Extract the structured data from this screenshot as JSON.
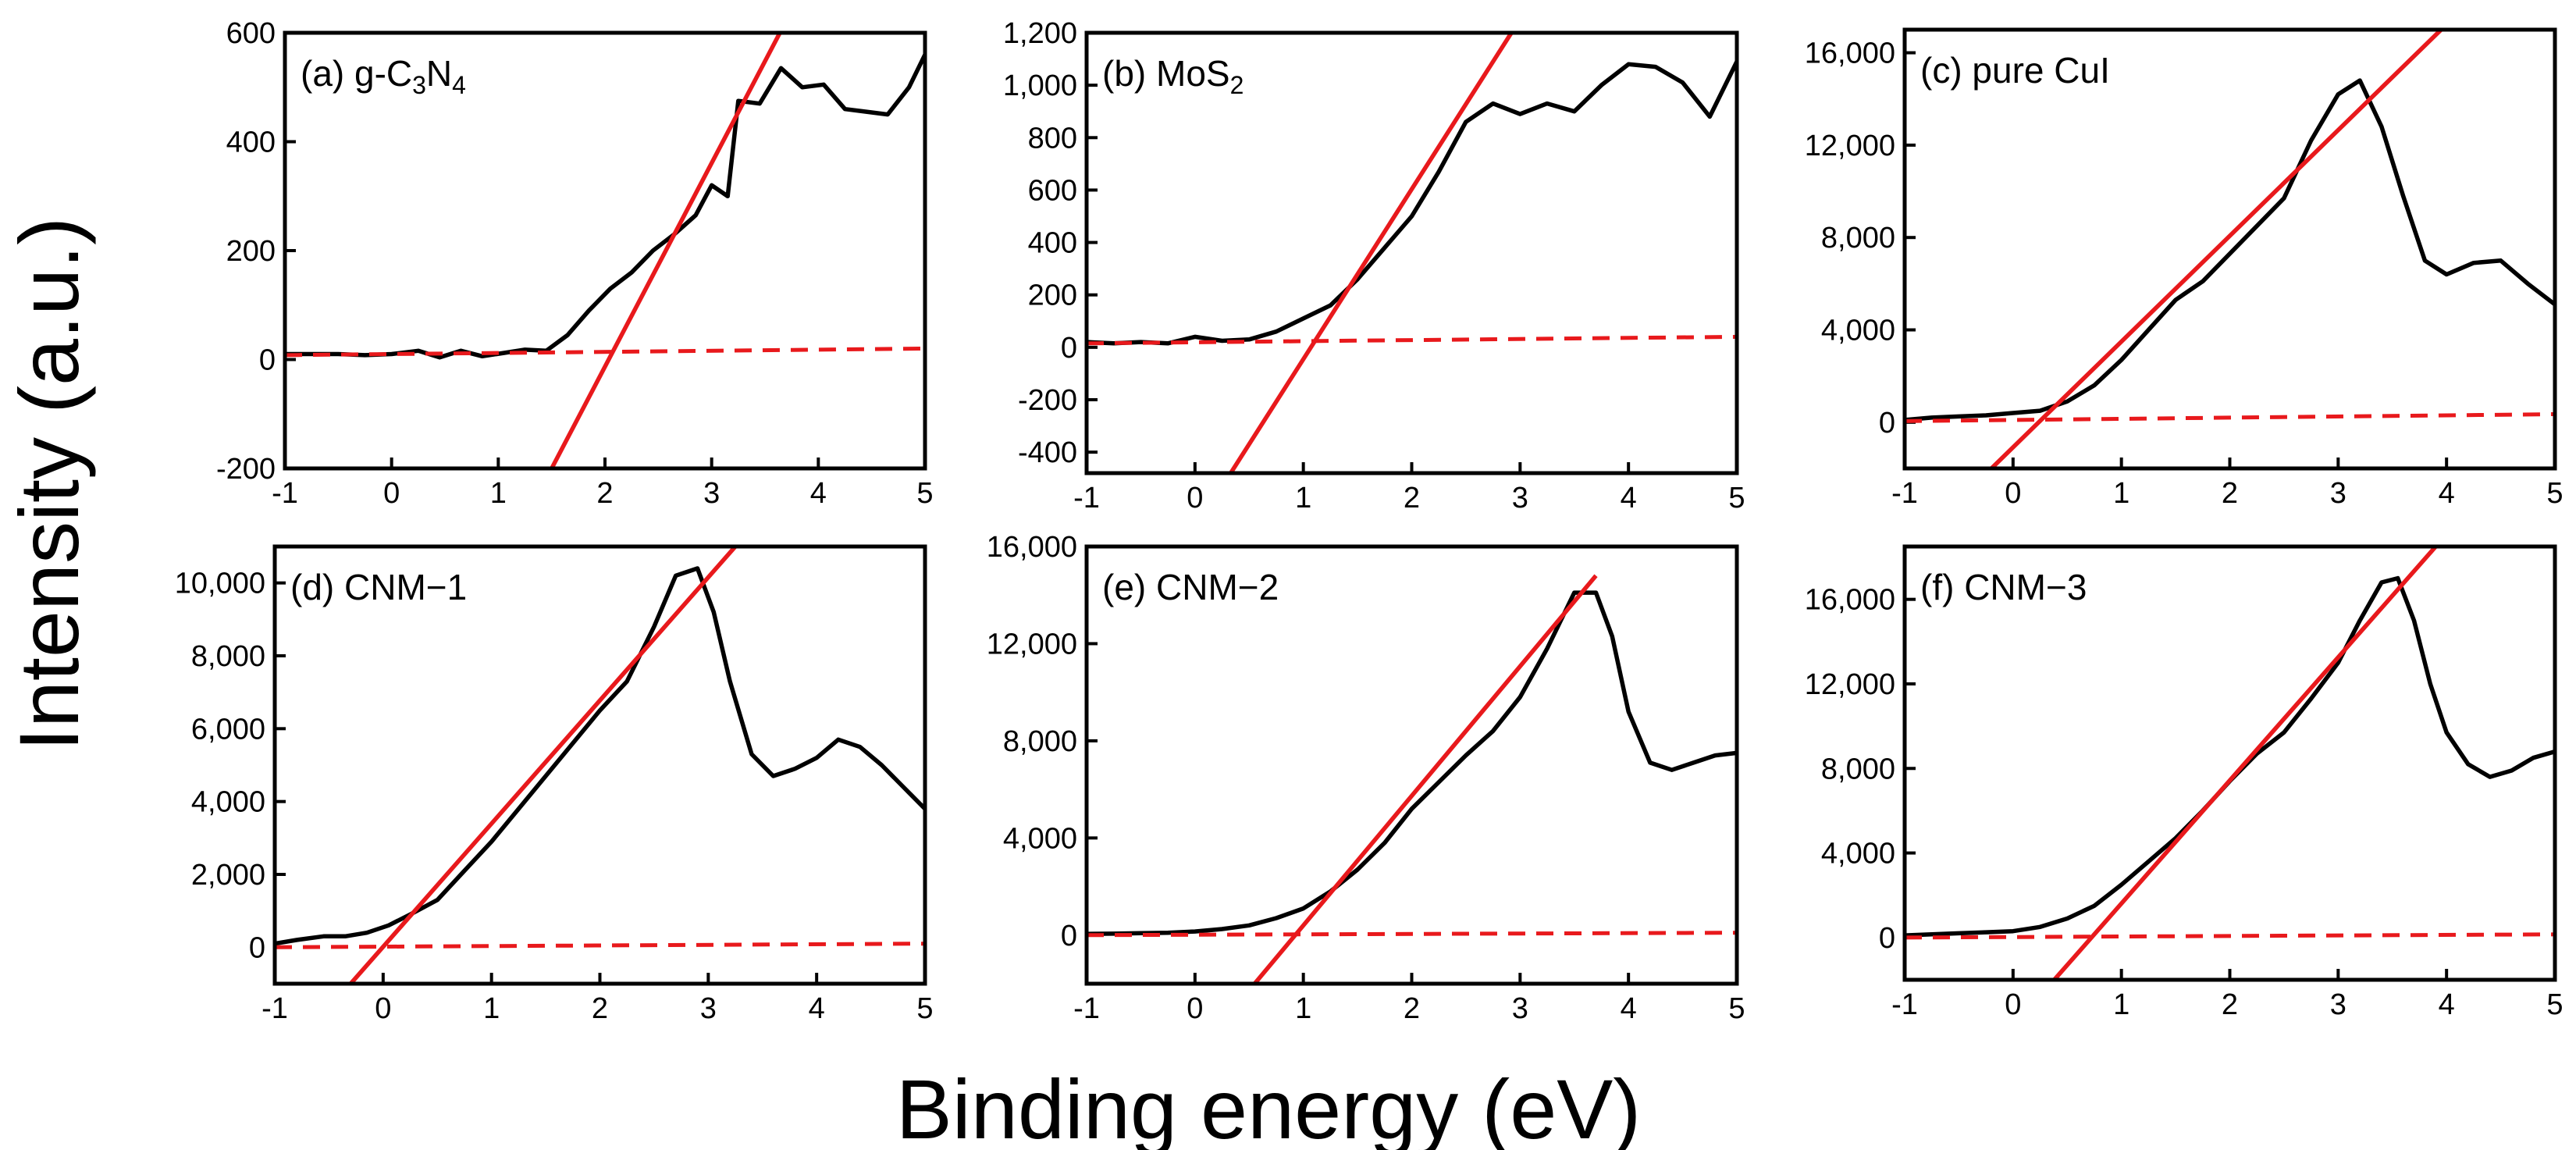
{
  "figure": {
    "ylabel": "Intensity (a.u.)",
    "xlabel": "Binding energy (eV)"
  },
  "chart_data": [
    {
      "type": "line",
      "panel_label": "(a) g-C",
      "label_parts": [
        {
          "t": "(a) g-C"
        },
        {
          "t": "3",
          "sub": true
        },
        {
          "t": "N"
        },
        {
          "t": "4",
          "sub": true
        }
      ],
      "xlabel": "Binding energy (eV)",
      "ylabel": "Intensity (a.u.)",
      "xlim": [
        -1,
        5
      ],
      "ylim": [
        -200,
        600
      ],
      "xticks": [
        -1,
        0,
        1,
        2,
        3,
        4,
        5
      ],
      "xtick_labels": [
        "-1",
        "0",
        "1",
        "2",
        "3",
        "4",
        "5"
      ],
      "yticks": [
        -200,
        0,
        200,
        400,
        600
      ],
      "ytick_labels": [
        "-200",
        "0",
        "200",
        "400",
        "600"
      ],
      "series": [
        {
          "name": "data",
          "x": [
            -1,
            -0.75,
            -0.5,
            -0.25,
            0,
            0.25,
            0.45,
            0.65,
            0.85,
            1.05,
            1.25,
            1.45,
            1.65,
            1.85,
            2.05,
            2.25,
            2.45,
            2.65,
            2.85,
            3.0,
            3.15,
            3.25,
            3.45,
            3.65,
            3.85,
            4.05,
            4.25,
            4.45,
            4.65,
            4.85,
            5.0
          ],
          "y": [
            10,
            10,
            10,
            8,
            10,
            16,
            4,
            16,
            6,
            12,
            18,
            16,
            45,
            90,
            130,
            160,
            200,
            230,
            265,
            320,
            300,
            475,
            470,
            535,
            500,
            505,
            460,
            455,
            450,
            500,
            560
          ]
        },
        {
          "name": "linear fit",
          "x": [
            1.5,
            3.64
          ],
          "y": [
            -200,
            600
          ]
        },
        {
          "name": "baseline",
          "x": [
            -1,
            5
          ],
          "y": [
            8,
            20
          ]
        }
      ]
    },
    {
      "type": "line",
      "panel_label": "(b) MoS",
      "label_parts": [
        {
          "t": "(b) MoS"
        },
        {
          "t": "2",
          "sub": true
        }
      ],
      "xlabel": "Binding energy (eV)",
      "ylabel": "Intensity (a.u.)",
      "xlim": [
        -1,
        5
      ],
      "ylim": [
        -480,
        1200
      ],
      "xticks": [
        -1,
        0,
        1,
        2,
        3,
        4,
        5
      ],
      "xtick_labels": [
        "-1",
        "0",
        "1",
        "2",
        "3",
        "4",
        "5"
      ],
      "yticks": [
        -400,
        -200,
        0,
        200,
        400,
        600,
        800,
        1000,
        1200
      ],
      "ytick_labels": [
        "-400",
        "-200",
        "0",
        "200",
        "400",
        "600",
        "800",
        "1,000",
        "1,200"
      ],
      "series": [
        {
          "name": "data",
          "x": [
            -1,
            -0.75,
            -0.5,
            -0.25,
            0,
            0.25,
            0.5,
            0.75,
            1.0,
            1.25,
            1.5,
            1.75,
            2.0,
            2.25,
            2.5,
            2.75,
            3.0,
            3.25,
            3.5,
            3.75,
            4.0,
            4.25,
            4.5,
            4.75,
            5.0
          ],
          "y": [
            20,
            15,
            20,
            15,
            40,
            25,
            30,
            60,
            110,
            160,
            260,
            380,
            500,
            670,
            860,
            930,
            890,
            930,
            900,
            1000,
            1080,
            1070,
            1010,
            880,
            1090
          ]
        },
        {
          "name": "linear fit",
          "x": [
            0.33,
            2.92
          ],
          "y": [
            -480,
            1200
          ]
        },
        {
          "name": "baseline",
          "x": [
            -1,
            5
          ],
          "y": [
            15,
            40
          ]
        }
      ]
    },
    {
      "type": "line",
      "panel_label": "(c) pure CuI",
      "label_parts": [
        {
          "t": "(c) pure CuI"
        }
      ],
      "xlabel": "Binding energy (eV)",
      "ylabel": "Intensity (a.u.)",
      "xlim": [
        -1,
        5
      ],
      "ylim": [
        -2000,
        17000
      ],
      "xticks": [
        -1,
        0,
        1,
        2,
        3,
        4,
        5
      ],
      "xtick_labels": [
        "-1",
        "0",
        "1",
        "2",
        "3",
        "4",
        "5"
      ],
      "yticks": [
        0,
        4000,
        8000,
        12000,
        16000
      ],
      "ytick_labels": [
        "0",
        "4,000",
        "8,000",
        "12,000",
        "16,000"
      ],
      "series": [
        {
          "name": "data",
          "x": [
            -1,
            -0.75,
            -0.5,
            -0.25,
            0,
            0.25,
            0.5,
            0.75,
            1.0,
            1.25,
            1.5,
            1.75,
            2.0,
            2.25,
            2.5,
            2.75,
            3.0,
            3.2,
            3.4,
            3.6,
            3.8,
            4.0,
            4.25,
            4.5,
            4.75,
            5.0
          ],
          "y": [
            100,
            200,
            250,
            300,
            400,
            500,
            900,
            1600,
            2700,
            4000,
            5300,
            6100,
            7300,
            8500,
            9700,
            12200,
            14200,
            14800,
            12800,
            9800,
            7000,
            6400,
            6900,
            7000,
            6000,
            5100
          ]
        },
        {
          "name": "linear fit",
          "x": [
            -0.2,
            3.95
          ],
          "y": [
            -2000,
            17000
          ]
        },
        {
          "name": "baseline",
          "x": [
            -1,
            5
          ],
          "y": [
            50,
            350
          ]
        }
      ]
    },
    {
      "type": "line",
      "panel_label": "(d) CNM−1",
      "label_parts": [
        {
          "t": "(d) CNM−1"
        }
      ],
      "xlabel": "Binding energy (eV)",
      "ylabel": "Intensity (a.u.)",
      "xlim": [
        -1,
        5
      ],
      "ylim": [
        -1000,
        11000
      ],
      "xticks": [
        -1,
        0,
        1,
        2,
        3,
        4,
        5
      ],
      "xtick_labels": [
        "-1",
        "0",
        "1",
        "2",
        "3",
        "4",
        "5"
      ],
      "yticks": [
        0,
        2000,
        4000,
        6000,
        8000,
        10000
      ],
      "ytick_labels": [
        "0",
        "2,000",
        "4,000",
        "6,000",
        "8,000",
        "10,000"
      ],
      "series": [
        {
          "name": "data",
          "x": [
            -1,
            -0.8,
            -0.55,
            -0.35,
            -0.15,
            0.05,
            0.25,
            0.5,
            0.75,
            1.0,
            1.25,
            1.5,
            1.75,
            2.0,
            2.25,
            2.5,
            2.7,
            2.9,
            3.05,
            3.2,
            3.4,
            3.6,
            3.8,
            4.0,
            4.2,
            4.4,
            4.6,
            4.8,
            5.0
          ],
          "y": [
            100,
            200,
            300,
            300,
            400,
            600,
            900,
            1300,
            2100,
            2900,
            3800,
            4700,
            5600,
            6500,
            7300,
            8800,
            10200,
            10400,
            9200,
            7300,
            5300,
            4700,
            4900,
            5200,
            5700,
            5500,
            5000,
            4400,
            3800
          ]
        },
        {
          "name": "linear fit",
          "x": [
            -0.3,
            3.25
          ],
          "y": [
            -1000,
            11000
          ]
        },
        {
          "name": "baseline",
          "x": [
            -1,
            5
          ],
          "y": [
            0,
            100
          ]
        }
      ]
    },
    {
      "type": "line",
      "panel_label": "(e) CNM−2",
      "label_parts": [
        {
          "t": "(e) CNM−2"
        }
      ],
      "xlabel": "Binding energy (eV)",
      "ylabel": "Intensity (a.u.)",
      "xlim": [
        -1,
        5
      ],
      "ylim": [
        -2000,
        16000
      ],
      "xticks": [
        -1,
        0,
        1,
        2,
        3,
        4,
        5
      ],
      "xtick_labels": [
        "-1",
        "0",
        "1",
        "2",
        "3",
        "4",
        "5"
      ],
      "yticks": [
        0,
        4000,
        8000,
        12000,
        16000
      ],
      "ytick_labels": [
        "0",
        "4,000",
        "8,000",
        "12,000",
        "16,000"
      ],
      "series": [
        {
          "name": "data",
          "x": [
            -1,
            -0.75,
            -0.5,
            -0.25,
            0,
            0.25,
            0.5,
            0.75,
            1.0,
            1.25,
            1.5,
            1.75,
            2.0,
            2.25,
            2.5,
            2.75,
            3.0,
            3.25,
            3.5,
            3.7,
            3.85,
            4.0,
            4.2,
            4.4,
            4.6,
            4.8,
            5.0
          ],
          "y": [
            50,
            60,
            80,
            100,
            150,
            250,
            400,
            700,
            1100,
            1800,
            2700,
            3800,
            5200,
            6300,
            7400,
            8400,
            9800,
            11800,
            14100,
            14100,
            12300,
            9200,
            7100,
            6800,
            7100,
            7400,
            7500
          ]
        },
        {
          "name": "linear fit",
          "x": [
            0.55,
            3.7
          ],
          "y": [
            -2000,
            14800
          ]
        },
        {
          "name": "baseline",
          "x": [
            -1,
            5
          ],
          "y": [
            0,
            100
          ]
        }
      ]
    },
    {
      "type": "line",
      "panel_label": "(f) CNM−3",
      "label_parts": [
        {
          "t": "(f) CNM−3"
        }
      ],
      "xlabel": "Binding energy (eV)",
      "ylabel": "Intensity (a.u.)",
      "xlim": [
        -1,
        5
      ],
      "ylim": [
        -2000,
        18500
      ],
      "xticks": [
        -1,
        0,
        1,
        2,
        3,
        4,
        5
      ],
      "xtick_labels": [
        "-1",
        "0",
        "1",
        "2",
        "3",
        "4",
        "5"
      ],
      "yticks": [
        0,
        4000,
        8000,
        12000,
        16000
      ],
      "ytick_labels": [
        "0",
        "4,000",
        "8,000",
        "12,000",
        "16,000"
      ],
      "series": [
        {
          "name": "data",
          "x": [
            -1,
            -0.75,
            -0.5,
            -0.25,
            0,
            0.25,
            0.5,
            0.75,
            1.0,
            1.25,
            1.5,
            1.75,
            2.0,
            2.25,
            2.5,
            2.75,
            3.0,
            3.2,
            3.4,
            3.55,
            3.7,
            3.85,
            4.0,
            4.2,
            4.4,
            4.6,
            4.8,
            5.0
          ],
          "y": [
            100,
            150,
            200,
            250,
            300,
            500,
            900,
            1500,
            2500,
            3600,
            4700,
            6000,
            7400,
            8700,
            9700,
            11300,
            13000,
            15000,
            16800,
            17000,
            15000,
            12000,
            9700,
            8200,
            7600,
            7900,
            8500,
            8800
          ]
        },
        {
          "name": "linear fit",
          "x": [
            0.38,
            3.9
          ],
          "y": [
            -2000,
            18500
          ]
        },
        {
          "name": "baseline",
          "x": [
            -1,
            5
          ],
          "y": [
            0,
            150
          ]
        }
      ]
    }
  ]
}
